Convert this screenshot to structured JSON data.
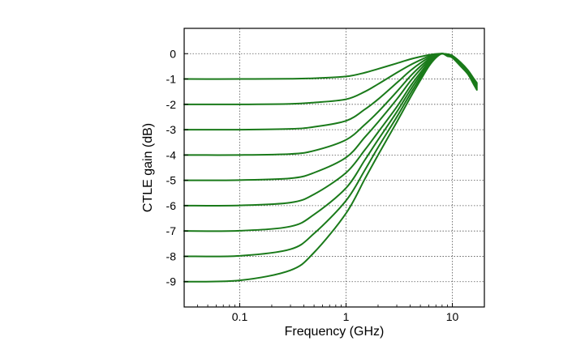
{
  "chart_data": {
    "type": "line",
    "xlabel": "Frequency (GHz)",
    "ylabel": "CTLE gain (dB)",
    "x_scale": "log",
    "xlim": [
      0.03,
      20
    ],
    "ylim": [
      -10,
      1
    ],
    "x_ticks": [
      {
        "value": 0.1,
        "label": "0.1"
      },
      {
        "value": 1,
        "label": "1"
      },
      {
        "value": 10,
        "label": "10"
      }
    ],
    "y_ticks": [
      {
        "value": 0,
        "label": "0"
      },
      {
        "value": -1,
        "label": "-1"
      },
      {
        "value": -2,
        "label": "-2"
      },
      {
        "value": -3,
        "label": "-3"
      },
      {
        "value": -4,
        "label": "-4"
      },
      {
        "value": -5,
        "label": "-5"
      },
      {
        "value": -6,
        "label": "-6"
      },
      {
        "value": -7,
        "label": "-7"
      },
      {
        "value": -8,
        "label": "-8"
      },
      {
        "value": -9,
        "label": "-9"
      }
    ],
    "grid": true,
    "line_color": "#1a7a1a",
    "x": [
      0.03,
      0.1,
      0.3,
      0.5,
      1,
      1.5,
      2,
      3,
      4,
      5,
      6,
      7,
      8,
      9,
      10,
      12,
      14,
      16,
      17
    ],
    "series": [
      {
        "values": [
          -1.0,
          -1.0,
          -0.99,
          -0.97,
          -0.9,
          -0.75,
          -0.6,
          -0.38,
          -0.22,
          -0.12,
          -0.05,
          -0.01,
          0.0,
          -0.02,
          -0.08,
          -0.35,
          -0.65,
          -1.0,
          -1.15
        ]
      },
      {
        "values": [
          -2.0,
          -2.0,
          -1.98,
          -1.93,
          -1.8,
          -1.5,
          -1.2,
          -0.75,
          -0.45,
          -0.25,
          -0.1,
          -0.03,
          0.0,
          -0.03,
          -0.09,
          -0.37,
          -0.67,
          -1.03,
          -1.19
        ]
      },
      {
        "values": [
          -3.0,
          -3.0,
          -2.97,
          -2.89,
          -2.65,
          -2.2,
          -1.8,
          -1.15,
          -0.68,
          -0.37,
          -0.16,
          -0.04,
          0.0,
          -0.04,
          -0.1,
          -0.39,
          -0.69,
          -1.06,
          -1.22
        ]
      },
      {
        "values": [
          -4.0,
          -4.0,
          -3.96,
          -3.83,
          -3.4,
          -2.8,
          -2.3,
          -1.5,
          -0.9,
          -0.5,
          -0.22,
          -0.06,
          0.0,
          -0.05,
          -0.11,
          -0.4,
          -0.71,
          -1.09,
          -1.26
        ]
      },
      {
        "values": [
          -5.0,
          -4.99,
          -4.92,
          -4.7,
          -4.1,
          -3.3,
          -2.7,
          -1.8,
          -1.1,
          -0.62,
          -0.28,
          -0.08,
          0.0,
          -0.06,
          -0.12,
          -0.42,
          -0.73,
          -1.12,
          -1.29
        ]
      },
      {
        "values": [
          -6.0,
          -5.99,
          -5.88,
          -5.55,
          -4.7,
          -3.8,
          -3.1,
          -2.1,
          -1.3,
          -0.75,
          -0.34,
          -0.1,
          0.0,
          -0.07,
          -0.13,
          -0.44,
          -0.75,
          -1.15,
          -1.33
        ]
      },
      {
        "values": [
          -7.0,
          -6.99,
          -6.82,
          -6.35,
          -5.3,
          -4.2,
          -3.4,
          -2.3,
          -1.45,
          -0.85,
          -0.4,
          -0.12,
          0.0,
          -0.08,
          -0.14,
          -0.46,
          -0.77,
          -1.18,
          -1.36
        ]
      },
      {
        "values": [
          -8.0,
          -7.98,
          -7.72,
          -7.1,
          -5.8,
          -4.6,
          -3.7,
          -2.5,
          -1.6,
          -0.95,
          -0.45,
          -0.14,
          0.0,
          -0.09,
          -0.15,
          -0.48,
          -0.79,
          -1.21,
          -1.4
        ]
      },
      {
        "values": [
          -9.0,
          -8.95,
          -8.55,
          -7.85,
          -6.3,
          -4.95,
          -4.0,
          -2.7,
          -1.75,
          -1.05,
          -0.5,
          -0.16,
          0.0,
          -0.1,
          -0.16,
          -0.5,
          -0.81,
          -1.24,
          -1.43
        ]
      }
    ]
  }
}
